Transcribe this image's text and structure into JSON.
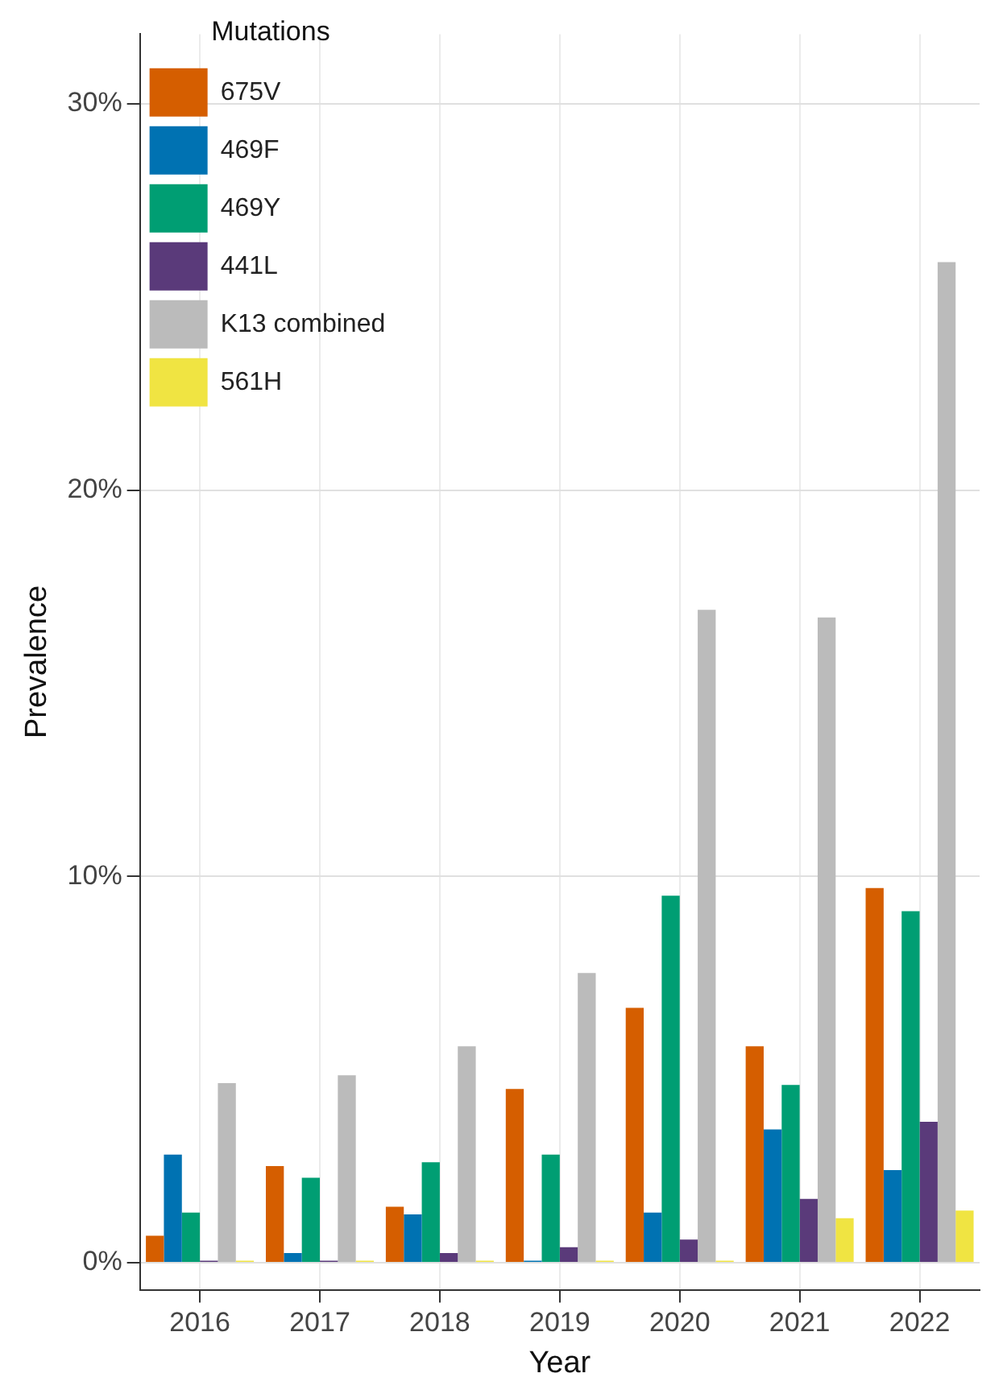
{
  "chart_data": {
    "type": "bar",
    "xlabel": "Year",
    "ylabel": "Prevalence",
    "legend_title": "Mutations",
    "categories": [
      "2016",
      "2017",
      "2018",
      "2019",
      "2020",
      "2021",
      "2022"
    ],
    "series": [
      {
        "name": "675V",
        "color": "#d55e00",
        "values": [
          0.7,
          2.5,
          1.45,
          4.5,
          6.6,
          5.6,
          9.7
        ]
      },
      {
        "name": "469F",
        "color": "#0072b2",
        "values": [
          2.8,
          0.25,
          1.25,
          0.05,
          1.3,
          3.45,
          2.4
        ]
      },
      {
        "name": "469Y",
        "color": "#009e73",
        "values": [
          1.3,
          2.2,
          2.6,
          2.8,
          9.5,
          4.6,
          9.1
        ]
      },
      {
        "name": "441L",
        "color": "#5a3a7a",
        "values": [
          0.05,
          0.05,
          0.25,
          0.4,
          0.6,
          1.65,
          3.65
        ]
      },
      {
        "name": "K13 combined",
        "color": "#bbbbbb",
        "values": [
          4.65,
          4.85,
          5.6,
          7.5,
          16.9,
          16.7,
          25.9
        ]
      },
      {
        "name": "561H",
        "color": "#f0e442",
        "values": [
          0.05,
          0.05,
          0.05,
          0.05,
          0.05,
          1.15,
          1.35
        ]
      }
    ],
    "ylim": [
      -0.7,
      31.8
    ],
    "yticks": [
      {
        "value": 0,
        "label": "0%"
      },
      {
        "value": 10,
        "label": "10%"
      },
      {
        "value": 20,
        "label": "20%"
      },
      {
        "value": 30,
        "label": "30%"
      }
    ],
    "grid": true,
    "legend": "top left"
  }
}
